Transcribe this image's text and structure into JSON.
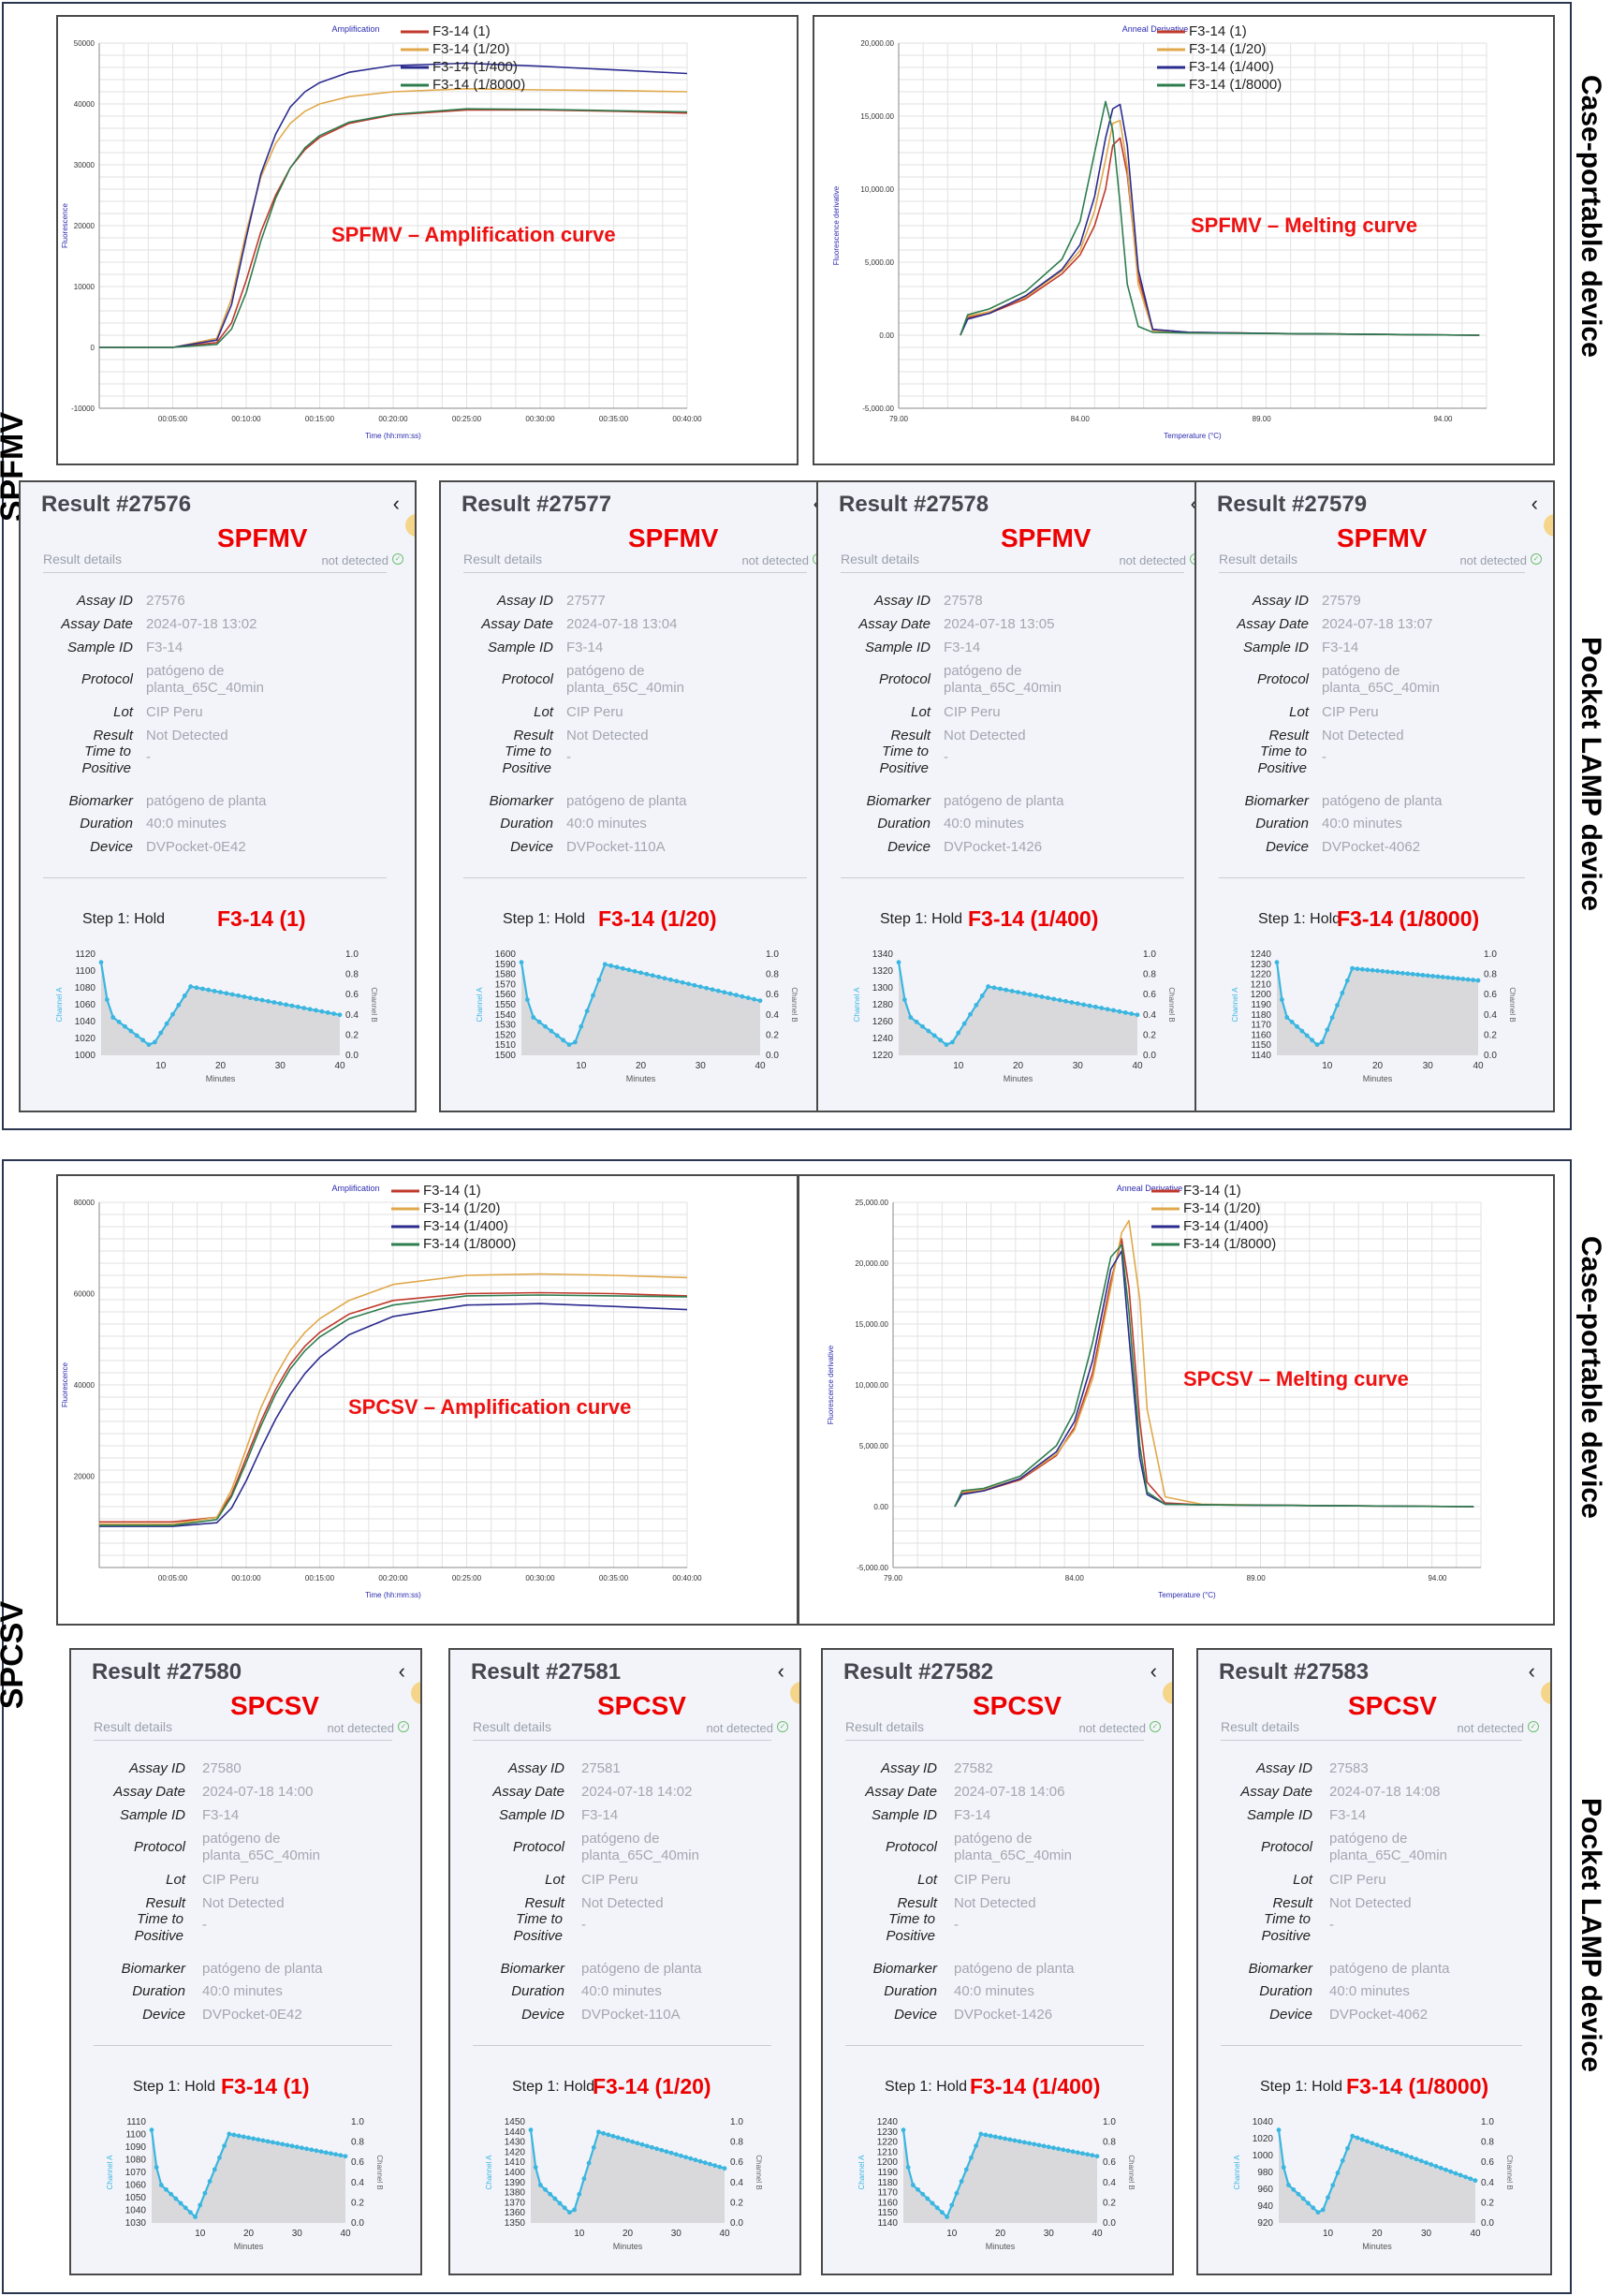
{
  "sections": [
    {
      "label": "SPFMV",
      "right_top": "Case-portable device",
      "right_bottom": "Pocket LAMP device"
    },
    {
      "label": "SPCSV",
      "right_top": "Case-portable device",
      "right_bottom": "Pocket LAMP device"
    }
  ],
  "legend": [
    "F3-14 (1)",
    "F3-14 (1/20)",
    "F3-14 (1/400)",
    "F3-14 (1/8000)"
  ],
  "colors": {
    "s1": "#c0392b",
    "s20": "#e0a84a",
    "s400": "#2b2b8f",
    "s8000": "#2e7d4f",
    "accent": "#ee0000",
    "trace": "#3ab6e0"
  },
  "charts": [
    {
      "id": "spfmv-amp",
      "title": "Amplification",
      "overlay": "SPFMV – Amplification curve",
      "xlabel": "Time (hh:mm:ss)",
      "ylabel": "Fluorescence",
      "xticks": [
        "00:05:00",
        "00:10:00",
        "00:15:00",
        "00:20:00",
        "00:25:00",
        "00:30:00",
        "00:35:00",
        "00:40:00"
      ],
      "yticks": [
        "50000",
        "40000",
        "30000",
        "20000",
        "10000",
        "0",
        "-10000"
      ]
    },
    {
      "id": "spfmv-melt",
      "title": "Anneal Derivative",
      "overlay": "SPFMV – Melting curve",
      "xlabel": "Temperature (°C)",
      "ylabel": "Fluorescence derivative",
      "xticks": [
        "79.00",
        "84.00",
        "89.00",
        "94.00"
      ],
      "yticks": [
        "20,000.00",
        "15,000.00",
        "10,000.00",
        "5,000.00",
        "0.00",
        "-5,000.00"
      ]
    },
    {
      "id": "spcsv-amp",
      "title": "Amplification",
      "overlay": "SPCSV – Amplification curve",
      "xlabel": "Time (hh:mm:ss)",
      "ylabel": "Fluorescence",
      "xticks": [
        "00:05:00",
        "00:10:00",
        "00:15:00",
        "00:20:00",
        "00:25:00",
        "00:30:00",
        "00:35:00",
        "00:40:00"
      ],
      "yticks": [
        "80000",
        "60000",
        "40000",
        "20000"
      ]
    },
    {
      "id": "spcsv-melt",
      "title": "Anneal Derivative",
      "overlay": "SPCSV – Melting curve",
      "xlabel": "Temperature (°C)",
      "ylabel": "Fluorescence derivative",
      "xticks": [
        "79.00",
        "84.00",
        "89.00",
        "94.00"
      ],
      "yticks": [
        "25,000.00",
        "20,000.00",
        "15,000.00",
        "10,000.00",
        "5,000.00",
        "0.00",
        "-5,000.00"
      ]
    }
  ],
  "card_common": {
    "result_details": "Result details",
    "not_detected": "not detected",
    "labels": {
      "assay_id": "Assay ID",
      "assay_date": "Assay Date",
      "sample_id": "Sample ID",
      "protocol": "Protocol",
      "lot": "Lot",
      "result": "Result",
      "time_to_positive": "Time to Positive",
      "biomarker": "Biomarker",
      "duration": "Duration",
      "device": "Device"
    },
    "step": "Step 1: Hold",
    "ch_a": "Channel A",
    "ch_b": "Channel B",
    "minutes": "Minutes",
    "xticks": [
      "10",
      "20",
      "30",
      "40"
    ],
    "right_ticks": [
      "1.0",
      "0.8",
      "0.6",
      "0.4",
      "0.2",
      "0.0"
    ],
    "sample_id": "F3-14",
    "protocol": "patógeno de planta_65C_40min",
    "lot": "CIP Peru",
    "result": "Not Detected",
    "ttp": "-",
    "biomarker": "patógeno de planta",
    "duration": "40:0 minutes"
  },
  "cards": [
    {
      "title": "Result #27576",
      "virus": "SPFMV",
      "assay_id": "27576",
      "date": "2024-07-18 13:02",
      "device": "DVPocket-0E42",
      "sample": "F3-14 (1)",
      "ymin": 1000,
      "ymax": 1120,
      "yticks": [
        "1120",
        "1100",
        "1080",
        "1060",
        "1040",
        "1020",
        "1000"
      ]
    },
    {
      "title": "Result #27577",
      "virus": "SPFMV",
      "assay_id": "27577",
      "date": "2024-07-18 13:04",
      "device": "DVPocket-110A",
      "sample": "F3-14 (1/20)",
      "ymin": 1500,
      "ymax": 1600,
      "yticks": [
        "1600",
        "1590",
        "1580",
        "1570",
        "1560",
        "1550",
        "1540",
        "1530",
        "1520",
        "1510",
        "1500"
      ]
    },
    {
      "title": "Result #27578",
      "virus": "SPFMV",
      "assay_id": "27578",
      "date": "2024-07-18 13:05",
      "device": "DVPocket-1426",
      "sample": "F3-14 (1/400)",
      "ymin": 1220,
      "ymax": 1340,
      "yticks": [
        "1340",
        "1320",
        "1300",
        "1280",
        "1260",
        "1240",
        "1220"
      ]
    },
    {
      "title": "Result #27579",
      "virus": "SPFMV",
      "assay_id": "27579",
      "date": "2024-07-18 13:07",
      "device": "DVPocket-4062",
      "sample": "F3-14 (1/8000)",
      "ymin": 1140,
      "ymax": 1240,
      "yticks": [
        "1240",
        "1230",
        "1220",
        "1210",
        "1200",
        "1190",
        "1180",
        "1170",
        "1160",
        "1150",
        "1140"
      ]
    },
    {
      "title": "Result #27580",
      "virus": "SPCSV",
      "assay_id": "27580",
      "date": "2024-07-18 14:00",
      "device": "DVPocket-0E42",
      "sample": "F3-14 (1)",
      "ymin": 1030,
      "ymax": 1110,
      "yticks": [
        "1110",
        "1100",
        "1090",
        "1080",
        "1070",
        "1060",
        "1050",
        "1040",
        "1030"
      ]
    },
    {
      "title": "Result #27581",
      "virus": "SPCSV",
      "assay_id": "27581",
      "date": "2024-07-18 14:02",
      "device": "DVPocket-110A",
      "sample": "F3-14 (1/20)",
      "ymin": 1350,
      "ymax": 1450,
      "yticks": [
        "1450",
        "1440",
        "1430",
        "1420",
        "1410",
        "1400",
        "1390",
        "1380",
        "1370",
        "1360",
        "1350"
      ]
    },
    {
      "title": "Result #27582",
      "virus": "SPCSV",
      "assay_id": "27582",
      "date": "2024-07-18 14:06",
      "device": "DVPocket-1426",
      "sample": "F3-14 (1/400)",
      "ymin": 1140,
      "ymax": 1240,
      "yticks": [
        "1240",
        "1230",
        "1220",
        "1210",
        "1200",
        "1190",
        "1180",
        "1170",
        "1160",
        "1150",
        "1140"
      ]
    },
    {
      "title": "Result #27583",
      "virus": "SPCSV",
      "assay_id": "27583",
      "date": "2024-07-18 14:08",
      "device": "DVPocket-4062",
      "sample": "F3-14 (1/8000)",
      "ymin": 920,
      "ymax": 1040,
      "yticks": [
        "1040",
        "1020",
        "1000",
        "980",
        "960",
        "940",
        "920"
      ]
    }
  ],
  "chart_data": [
    {
      "type": "line",
      "title": "Amplification",
      "xlabel": "Time (hh:mm:ss)",
      "ylabel": "Fluorescence",
      "x_unit": "minutes",
      "xlim": [
        0,
        40
      ],
      "ylim": [
        -10000,
        50000
      ],
      "x": [
        0,
        5,
        8,
        9,
        10,
        11,
        12,
        13,
        14,
        15,
        17,
        20,
        25,
        30,
        35,
        40
      ],
      "series": [
        {
          "name": "F3-14 (1)",
          "values": [
            0,
            0,
            800,
            4000,
            11000,
            19000,
            25000,
            29500,
            32500,
            34500,
            36800,
            38200,
            39000,
            39000,
            38800,
            38500
          ]
        },
        {
          "name": "F3-14 (1/20)",
          "values": [
            0,
            0,
            1500,
            8000,
            19000,
            28000,
            33500,
            36800,
            38800,
            40000,
            41200,
            42000,
            42500,
            42300,
            42200,
            42000
          ]
        },
        {
          "name": "F3-14 (1/400)",
          "values": [
            0,
            0,
            1200,
            7000,
            18000,
            28500,
            35000,
            39500,
            42000,
            43500,
            45200,
            46300,
            46700,
            46200,
            45600,
            45000
          ]
        },
        {
          "name": "F3-14 (1/8000)",
          "values": [
            0,
            0,
            500,
            3000,
            9000,
            17500,
            24500,
            29500,
            32800,
            34800,
            37000,
            38300,
            39200,
            39100,
            38900,
            38700
          ]
        }
      ]
    },
    {
      "type": "line",
      "title": "Anneal Derivative",
      "xlabel": "Temperature (°C)",
      "ylabel": "Fluorescence derivative",
      "xlim": [
        79,
        95.2
      ],
      "ylim": [
        -5000,
        20000
      ],
      "x": [
        80.7,
        80.9,
        81.5,
        82.5,
        83.5,
        84.0,
        84.4,
        84.7,
        84.9,
        85.1,
        85.3,
        85.6,
        86.0,
        87,
        90,
        95
      ],
      "series": [
        {
          "name": "F3-14 (1)",
          "values": [
            0,
            1200,
            1500,
            2500,
            4200,
            5500,
            7500,
            10000,
            13000,
            13500,
            11000,
            4000,
            400,
            200,
            100,
            0
          ]
        },
        {
          "name": "F3-14 (1/20)",
          "values": [
            0,
            1300,
            1600,
            2600,
            4400,
            5800,
            8500,
            12000,
            14500,
            14700,
            11500,
            3500,
            300,
            200,
            100,
            0
          ]
        },
        {
          "name": "F3-14 (1/400)",
          "values": [
            0,
            1100,
            1500,
            2700,
            4500,
            6200,
            9500,
            13500,
            15500,
            15800,
            13000,
            4500,
            400,
            200,
            100,
            0
          ]
        },
        {
          "name": "F3-14 (1/8000)",
          "values": [
            0,
            1400,
            1800,
            3000,
            5200,
            7800,
            12500,
            16000,
            14000,
            9000,
            3500,
            600,
            200,
            150,
            100,
            0
          ]
        }
      ]
    },
    {
      "type": "line",
      "title": "Amplification",
      "xlabel": "Time (hh:mm:ss)",
      "ylabel": "Fluorescence",
      "x_unit": "minutes",
      "xlim": [
        0,
        40
      ],
      "ylim": [
        0,
        80000
      ],
      "x": [
        0,
        5,
        8,
        9,
        10,
        11,
        12,
        13,
        14,
        15,
        17,
        20,
        25,
        30,
        35,
        40
      ],
      "series": [
        {
          "name": "F3-14 (1)",
          "values": [
            10000,
            10000,
            11000,
            16000,
            24000,
            32000,
            39000,
            44500,
            48500,
            51500,
            55500,
            58500,
            60000,
            60200,
            60000,
            59500
          ]
        },
        {
          "name": "F3-14 (1/20)",
          "values": [
            9500,
            9500,
            11000,
            17000,
            26000,
            35000,
            42000,
            47500,
            51500,
            54500,
            58500,
            62000,
            64000,
            64300,
            64000,
            63500
          ]
        },
        {
          "name": "F3-14 (1/400)",
          "values": [
            9000,
            9000,
            9800,
            13000,
            19000,
            26000,
            32500,
            38000,
            42500,
            46000,
            51000,
            55000,
            57500,
            57800,
            57200,
            56500
          ]
        },
        {
          "name": "F3-14 (1/8000)",
          "values": [
            9200,
            9200,
            10500,
            15500,
            23000,
            31000,
            38000,
            43500,
            47500,
            50500,
            54500,
            57500,
            59500,
            59700,
            59500,
            59300
          ]
        }
      ]
    },
    {
      "type": "line",
      "title": "Anneal Derivative",
      "xlabel": "Temperature (°C)",
      "ylabel": "Fluorescence derivative",
      "xlim": [
        79,
        95.2
      ],
      "ylim": [
        -5000,
        25000
      ],
      "x": [
        80.7,
        80.9,
        81.5,
        82.5,
        83.5,
        84.0,
        84.5,
        85.0,
        85.3,
        85.5,
        85.8,
        86.0,
        86.5,
        87.5,
        90,
        95
      ],
      "series": [
        {
          "name": "F3-14 (1)",
          "values": [
            0,
            1100,
            1300,
            2200,
            4200,
            6500,
            11000,
            18500,
            22000,
            18000,
            7000,
            2000,
            300,
            150,
            100,
            0
          ]
        },
        {
          "name": "F3-14 (1/20)",
          "values": [
            0,
            1200,
            1400,
            2300,
            4300,
            6300,
            10500,
            18000,
            22500,
            23500,
            17000,
            8000,
            800,
            200,
            100,
            0
          ]
        },
        {
          "name": "F3-14 (1/400)",
          "values": [
            0,
            1000,
            1300,
            2300,
            4500,
            7000,
            12000,
            19500,
            21000,
            14000,
            4000,
            1000,
            200,
            150,
            100,
            0
          ]
        },
        {
          "name": "F3-14 (1/8000)",
          "values": [
            0,
            1300,
            1500,
            2500,
            5000,
            7800,
            13500,
            20500,
            21500,
            16000,
            5000,
            1200,
            200,
            150,
            100,
            0
          ]
        }
      ]
    }
  ]
}
